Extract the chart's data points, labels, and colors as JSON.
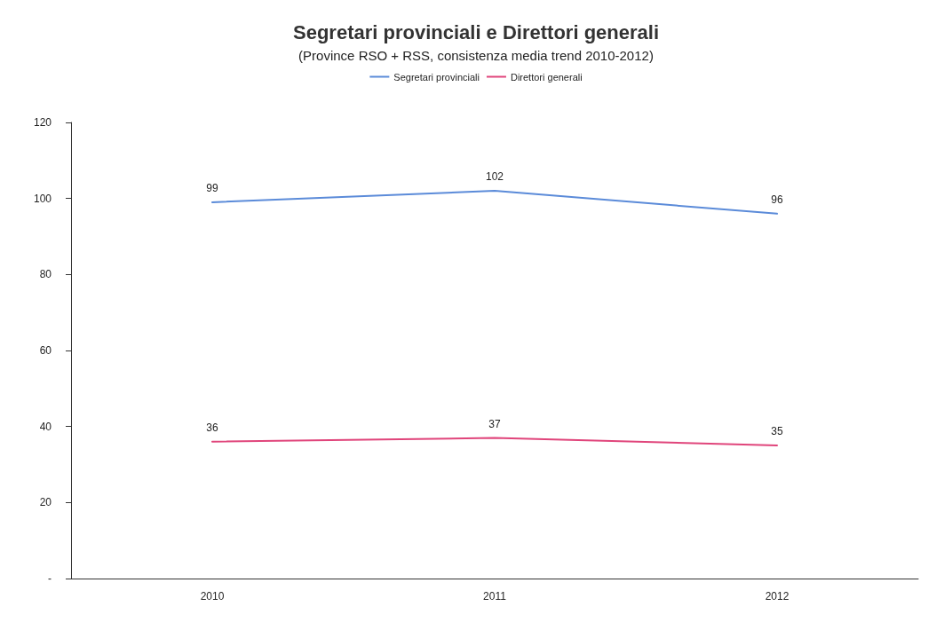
{
  "chart_data": {
    "type": "line",
    "title": "Segretari provinciali e Direttori generali",
    "subtitle": "(Province RSO + RSS, consistenza media trend 2010-2012)",
    "categories": [
      "2010",
      "2011",
      "2012"
    ],
    "series": [
      {
        "name": "Segretari provinciali",
        "color": "#5b8bd9",
        "values": [
          99,
          102,
          96
        ]
      },
      {
        "name": "Direttori generali",
        "color": "#e0457b",
        "values": [
          36,
          37,
          35
        ]
      }
    ],
    "ylim": [
      0,
      120
    ],
    "yticks": [
      {
        "value": 0,
        "label": "-"
      },
      20,
      40,
      60,
      80,
      100,
      120
    ],
    "grid": false,
    "legend": "top",
    "marker": "none",
    "line_style": "solid",
    "data_labels": true
  }
}
